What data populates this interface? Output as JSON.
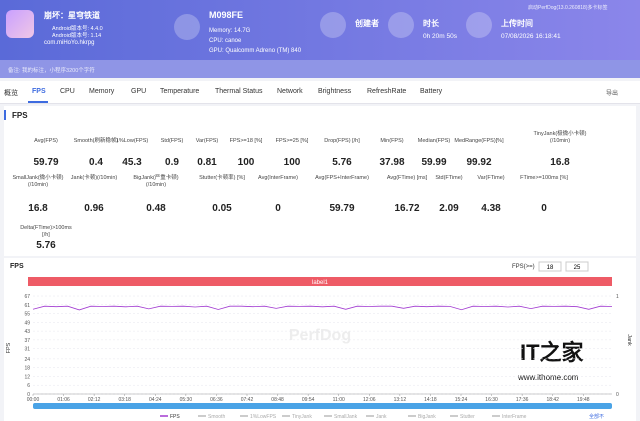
{
  "header": {
    "app_name": "崩坏：星穹铁道",
    "app_version": "Android版本号: 4.4.0",
    "app_version2": "Android版本号: 1.14",
    "package": "com.miHoYo.hkrpg",
    "device": "M098FE",
    "memory": "Memory: 14.7G",
    "cpu": "CPU: canoe",
    "gpu": "GPU: Qualcomm Adreno (TM) 840",
    "creator_label": "创建者",
    "duration_label": "时长",
    "duration": "0h 20m 50s",
    "upload_label": "上传时间",
    "upload_time": "07/08/2026 16:18:41",
    "top_right": "启动PerfDog(13.0.260818)多卡标签",
    "note": "备注: 我的标注，小程序3200个字符"
  },
  "tabs": [
    "概览",
    "FPS",
    "CPU",
    "Memory",
    "GPU",
    "Temperature",
    "Thermal Status",
    "Network",
    "Brightness",
    "RefreshRate",
    "Battery"
  ],
  "export": "导出",
  "section_title": "FPS",
  "metrics": [
    {
      "label": "Avg(FPS)",
      "value": 59.79
    },
    {
      "label": "Smooth(刷新稳帧)",
      "value": 0.4
    },
    {
      "label": "1%Low(FPS)",
      "value": 45.3
    },
    {
      "label": "Std(FPS)",
      "value": 0.9
    },
    {
      "label": "Var(FPS)",
      "value": 0.81
    },
    {
      "label": "FPS>=18 [%]",
      "value": 100
    },
    {
      "label": "FPS>=25 [%]",
      "value": 100
    },
    {
      "label": "Drop(FPS) [/h]",
      "value": 5.76
    },
    {
      "label": "Min(FPS)",
      "value": 37.98
    },
    {
      "label": "Median(FPS)",
      "value": 59.99
    },
    {
      "label": "MedRange(FPS)[%]",
      "value": 99.92
    },
    {
      "label": "TinyJank(极微小卡顿)(/10min)",
      "value": 16.8
    },
    {
      "label": "SmallJank(微小卡顿)(/10min)",
      "value": 16.8
    },
    {
      "label": "Jank(卡顿)(/10min)",
      "value": 0.96
    },
    {
      "label": "BigJank(严重卡顿)(/10min)",
      "value": 0.48
    },
    {
      "label": "Stutter(卡顿率) [%]",
      "value": 0.05
    },
    {
      "label": "Avg(InterFrame)",
      "value": 0
    },
    {
      "label": "Avg(FPS+InterFrame)",
      "value": 59.79
    },
    {
      "label": "Avg(FTime) [ms]",
      "value": 16.72
    },
    {
      "label": "Std(FTime)",
      "value": 2.09
    },
    {
      "label": "Var(FTime)",
      "value": 4.38
    },
    {
      "label": "FTime>=100ms [%]",
      "value": 0
    },
    {
      "label": "Delta(FTime)>100ms [/h]",
      "value": 5.76
    }
  ],
  "watermark": {
    "brand": "IT之家",
    "url": "www.ithome.com",
    "tool": "PerfDog"
  },
  "chart_data": {
    "type": "line",
    "title": "FPS",
    "filter_label": "FPS(>=)",
    "filter_values": [
      18,
      25
    ],
    "band_label": "label1",
    "ylabel": "FPS",
    "y2label": "Jank",
    "all_toggle": "全部不",
    "xlim": [
      0,
      1250
    ],
    "ylim": [
      0,
      67
    ],
    "y2lim": [
      0,
      1
    ],
    "yticks": [
      0,
      6,
      12,
      18,
      24,
      31,
      37,
      43,
      49,
      55,
      61,
      67
    ],
    "y2ticks": [
      0,
      1
    ],
    "xticks": [
      {
        "value": 0,
        "label": "00:00"
      },
      {
        "value": 66,
        "label": "01:06"
      },
      {
        "value": 132,
        "label": "02:12"
      },
      {
        "value": 198,
        "label": "03:18"
      },
      {
        "value": 264,
        "label": "04:24"
      },
      {
        "value": 330,
        "label": "05:30"
      },
      {
        "value": 396,
        "label": "06:36"
      },
      {
        "value": 462,
        "label": "07:42"
      },
      {
        "value": 528,
        "label": "08:48"
      },
      {
        "value": 594,
        "label": "09:54"
      },
      {
        "value": 660,
        "label": "11:00"
      },
      {
        "value": 726,
        "label": "12:06"
      },
      {
        "value": 792,
        "label": "13:12"
      },
      {
        "value": 858,
        "label": "14:18"
      },
      {
        "value": 924,
        "label": "15:24"
      },
      {
        "value": 990,
        "label": "16:30"
      },
      {
        "value": 1056,
        "label": "17:36"
      },
      {
        "value": 1122,
        "label": "18:42"
      },
      {
        "value": 1188,
        "label": "19:48"
      }
    ],
    "grid": true,
    "series": [
      {
        "name": "FPS",
        "color": "#a23bd1",
        "x": [
          0,
          25,
          50,
          75,
          100,
          125,
          150,
          175,
          200,
          225,
          250,
          275,
          300,
          325,
          350,
          375,
          400,
          425,
          450,
          475,
          500,
          525,
          550,
          575,
          600,
          625,
          650,
          675,
          700,
          725,
          750,
          775,
          800,
          825,
          850,
          875,
          900,
          925,
          950,
          975,
          1000,
          1025,
          1050,
          1075,
          1100,
          1125,
          1150,
          1175,
          1200,
          1225,
          1250
        ],
        "values": [
          58,
          60,
          59.7,
          60,
          57.5,
          60,
          59.8,
          60,
          59.6,
          60,
          58.2,
          60,
          59.9,
          60,
          59.5,
          60,
          57.8,
          60,
          60,
          59.7,
          60,
          58.5,
          60,
          59.9,
          60,
          59.6,
          60,
          57.9,
          60,
          59.8,
          60,
          60,
          58.6,
          60,
          59.7,
          60,
          59.9,
          57.6,
          60,
          59.8,
          60,
          59.5,
          60,
          58.4,
          60,
          59.9,
          60,
          59.7,
          57.9,
          60,
          59.8
        ]
      }
    ],
    "other_legend": [
      "Smooth",
      "1%LowFPS",
      "TinyJank",
      "SmallJank",
      "Jank",
      "BigJank",
      "Stutter",
      "InterFrame"
    ]
  }
}
